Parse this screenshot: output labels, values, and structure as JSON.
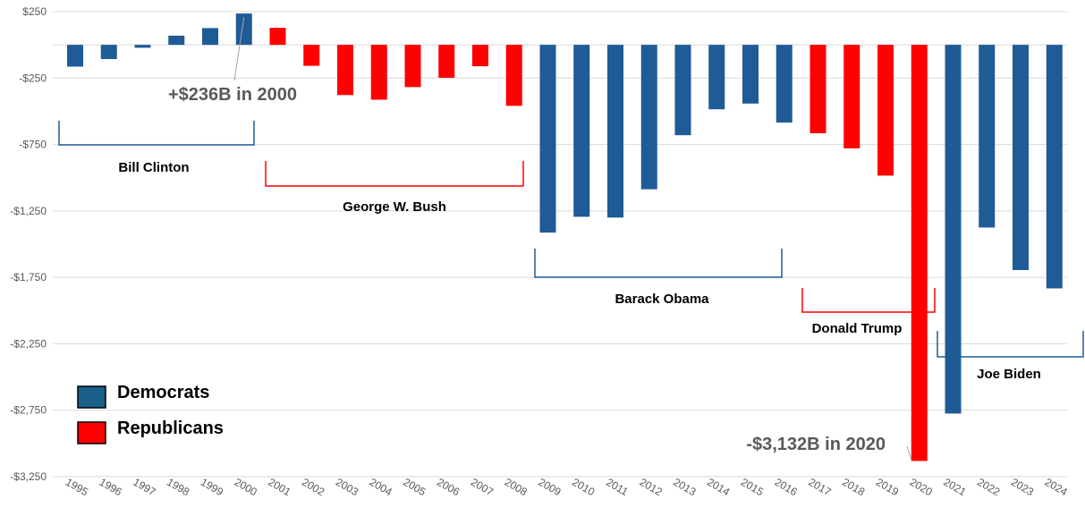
{
  "chart_data": {
    "type": "bar",
    "title": "",
    "xlabel": "",
    "ylabel": "",
    "ylim": [
      -3250,
      250
    ],
    "y_ticks": [
      "$250",
      "-$250",
      "-$750",
      "-$1,250",
      "-$1,750",
      "-$2,250",
      "-$2,750",
      "-$3,250"
    ],
    "y_tick_values": [
      250,
      -250,
      -750,
      -1250,
      -1750,
      -2250,
      -2750,
      -3250
    ],
    "categories": [
      "1995",
      "1996",
      "1997",
      "1998",
      "1999",
      "2000",
      "2001",
      "2002",
      "2003",
      "2004",
      "2005",
      "2006",
      "2007",
      "2008",
      "2009",
      "2010",
      "2011",
      "2012",
      "2013",
      "2014",
      "2015",
      "2016",
      "2017",
      "2018",
      "2019",
      "2020",
      "2021",
      "2022",
      "2023",
      "2024"
    ],
    "values": [
      -164,
      -107,
      -22,
      69,
      126,
      236,
      128,
      -158,
      -378,
      -413,
      -318,
      -248,
      -161,
      -459,
      -1413,
      -1294,
      -1300,
      -1087,
      -680,
      -485,
      -442,
      -585,
      -665,
      -779,
      -984,
      -3132,
      -2775,
      -1375,
      -1695,
      -1833
    ],
    "party": [
      "D",
      "D",
      "D",
      "D",
      "D",
      "D",
      "R",
      "R",
      "R",
      "R",
      "R",
      "R",
      "R",
      "R",
      "D",
      "D",
      "D",
      "D",
      "D",
      "D",
      "D",
      "D",
      "R",
      "R",
      "R",
      "R",
      "D",
      "D",
      "D",
      "D"
    ],
    "colors": {
      "D": "#1f5b96",
      "R": "#ff0000",
      "D_legend": "#1a5f8a"
    },
    "legend": [
      {
        "name": "Democrats",
        "party": "D"
      },
      {
        "name": "Republicans",
        "party": "R"
      }
    ],
    "legend_position": "bottom-left",
    "grid": true,
    "presidents": [
      {
        "name": "Bill Clinton",
        "party": "D",
        "from": "1995",
        "to": "2000"
      },
      {
        "name": "George W. Bush",
        "party": "R",
        "from": "2001",
        "to": "2008"
      },
      {
        "name": "Barack Obama",
        "party": "D",
        "from": "2009",
        "to": "2016"
      },
      {
        "name": "Donald Trump",
        "party": "R",
        "from": "2017",
        "to": "2020"
      },
      {
        "name": "Joe Biden",
        "party": "D",
        "from": "2021",
        "to": "2024"
      }
    ],
    "annotations": [
      {
        "text": "+$236B in 2000",
        "category": "2000"
      },
      {
        "text": "-$3,132B in 2020",
        "category": "2020"
      }
    ]
  }
}
